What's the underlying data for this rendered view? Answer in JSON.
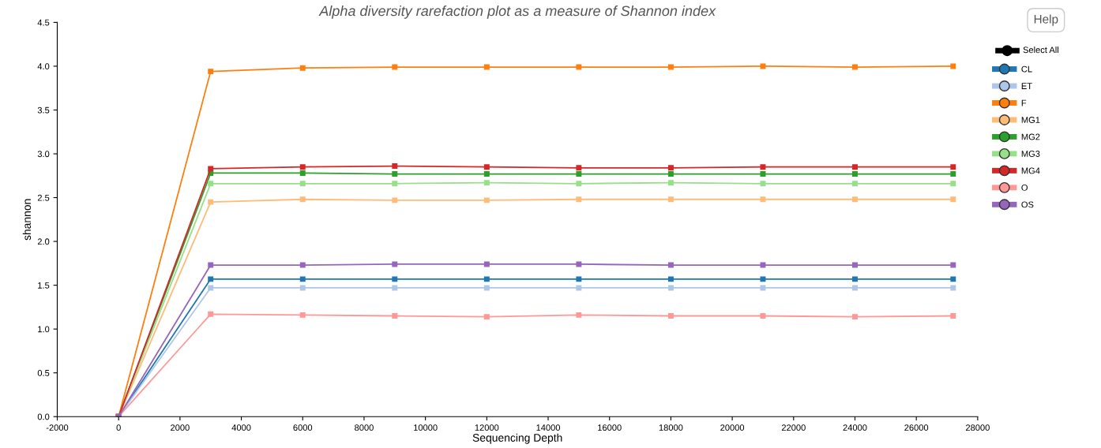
{
  "chart_data": {
    "type": "line",
    "title": "Alpha diversity rarefaction plot as a measure of Shannon index",
    "xlabel": "Sequencing Depth",
    "ylabel": "shannon",
    "x": [
      0,
      3000,
      6000,
      9000,
      12000,
      15000,
      18000,
      21000,
      24000,
      27200
    ],
    "xlim": [
      -2000,
      28000
    ],
    "xticks": [
      -2000,
      0,
      2000,
      4000,
      6000,
      8000,
      10000,
      12000,
      14000,
      16000,
      18000,
      20000,
      22000,
      24000,
      26000,
      28000
    ],
    "ylim": [
      0,
      4.5
    ],
    "yticks": [
      {
        "value": 0,
        "label": "0.0"
      },
      {
        "value": 0.5,
        "label": "0.5"
      },
      {
        "value": 1,
        "label": "1.0"
      },
      {
        "value": 1.5,
        "label": "1.5"
      },
      {
        "value": 2,
        "label": "2.0"
      },
      {
        "value": 2.5,
        "label": "2.5"
      },
      {
        "value": 3,
        "label": "3.0"
      },
      {
        "value": 3.5,
        "label": "3.5"
      },
      {
        "value": 4,
        "label": "4.0"
      },
      {
        "value": 4.5,
        "label": "4.5"
      }
    ],
    "grid": false,
    "legend": "right",
    "marker": "square",
    "line_style": "solid",
    "annotations": [
      "Help",
      "Select All"
    ],
    "series": [
      {
        "name": "CL",
        "color": "#1f77b4",
        "values": [
          0,
          1.57,
          1.57,
          1.57,
          1.57,
          1.57,
          1.57,
          1.57,
          1.57,
          1.57
        ]
      },
      {
        "name": "ET",
        "color": "#aec7e8",
        "values": [
          0,
          1.47,
          1.47,
          1.47,
          1.47,
          1.47,
          1.47,
          1.47,
          1.47,
          1.47
        ]
      },
      {
        "name": "F",
        "color": "#ff7f0e",
        "values": [
          0,
          3.94,
          3.98,
          3.99,
          3.99,
          3.99,
          3.99,
          4.0,
          3.99,
          4.0
        ]
      },
      {
        "name": "MG1",
        "color": "#ffbb78",
        "values": [
          0,
          2.45,
          2.48,
          2.47,
          2.47,
          2.48,
          2.48,
          2.48,
          2.48,
          2.48
        ]
      },
      {
        "name": "MG2",
        "color": "#2ca02c",
        "values": [
          0,
          2.78,
          2.78,
          2.77,
          2.77,
          2.77,
          2.77,
          2.77,
          2.77,
          2.77
        ]
      },
      {
        "name": "MG3",
        "color": "#98df8a",
        "values": [
          0,
          2.66,
          2.66,
          2.66,
          2.67,
          2.66,
          2.67,
          2.66,
          2.66,
          2.66
        ]
      },
      {
        "name": "MG4",
        "color": "#d62728",
        "values": [
          0,
          2.83,
          2.85,
          2.86,
          2.85,
          2.84,
          2.84,
          2.85,
          2.85,
          2.85
        ]
      },
      {
        "name": "O",
        "color": "#ff9896",
        "values": [
          0,
          1.17,
          1.16,
          1.15,
          1.14,
          1.16,
          1.15,
          1.15,
          1.14,
          1.15
        ]
      },
      {
        "name": "OS",
        "color": "#9467bd",
        "values": [
          0,
          1.73,
          1.73,
          1.74,
          1.74,
          1.74,
          1.73,
          1.73,
          1.73,
          1.73
        ]
      }
    ]
  }
}
